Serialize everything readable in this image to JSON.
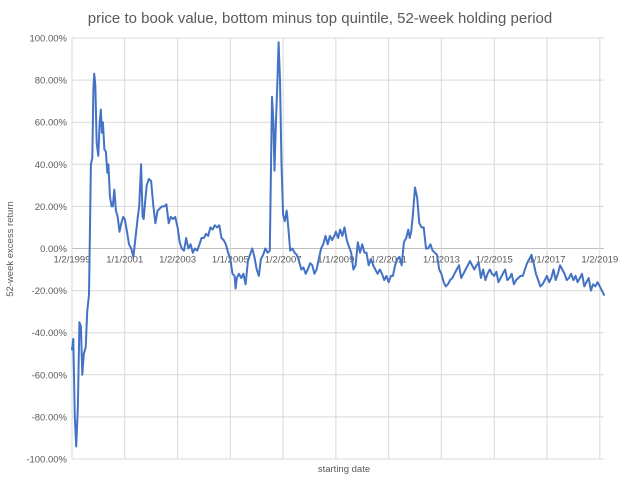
{
  "chart_data": {
    "type": "line",
    "title": "price to book value, bottom minus top quintile, 52-week holding period",
    "xlabel": "starting date",
    "ylabel": "52-week excess return",
    "ylim": [
      -100,
      100
    ],
    "yticks": [
      "100.00%",
      "80.00%",
      "60.00%",
      "40.00%",
      "20.00%",
      "0.00%",
      "-20.00%",
      "-40.00%",
      "-60.00%",
      "-80.00%",
      "-100.00%"
    ],
    "ytick_values": [
      100,
      80,
      60,
      40,
      20,
      0,
      -20,
      -40,
      -60,
      -80,
      -100
    ],
    "xrange": [
      "1999-01-02",
      "2019-03-01"
    ],
    "xticks": [
      {
        "label": "1/2/1999",
        "date": "1999-01-02"
      },
      {
        "label": "1/1/2001",
        "date": "2001-01-01"
      },
      {
        "label": "1/2/2003",
        "date": "2003-01-02"
      },
      {
        "label": "1/1/2005",
        "date": "2005-01-01"
      },
      {
        "label": "1/2/2007",
        "date": "2007-01-02"
      },
      {
        "label": "1/1/2009",
        "date": "2009-01-01"
      },
      {
        "label": "1/2/2011",
        "date": "2011-01-02"
      },
      {
        "label": "1/1/2013",
        "date": "2013-01-01"
      },
      {
        "label": "1/2/2015",
        "date": "2015-01-02"
      },
      {
        "label": "1/1/2017",
        "date": "2017-01-01"
      },
      {
        "label": "1/2/2019",
        "date": "2019-01-02"
      }
    ],
    "grid": true,
    "legend": "none",
    "series": [
      {
        "color": "#4472c4",
        "points": [
          [
            "1999-01-02",
            -48
          ],
          [
            "1999-01-20",
            -43
          ],
          [
            "1999-02-10",
            -80
          ],
          [
            "1999-03-01",
            -94
          ],
          [
            "1999-03-25",
            -75
          ],
          [
            "1999-04-15",
            -35
          ],
          [
            "1999-05-05",
            -37
          ],
          [
            "1999-05-25",
            -60
          ],
          [
            "1999-06-15",
            -50
          ],
          [
            "1999-07-10",
            -47
          ],
          [
            "1999-08-01",
            -30
          ],
          [
            "1999-08-25",
            -22
          ],
          [
            "1999-09-20",
            40
          ],
          [
            "1999-10-10",
            43
          ],
          [
            "1999-10-25",
            76
          ],
          [
            "1999-11-05",
            83
          ],
          [
            "1999-11-20",
            78
          ],
          [
            "1999-12-10",
            50
          ],
          [
            "2000-01-01",
            44
          ],
          [
            "2000-01-20",
            60
          ],
          [
            "2000-02-05",
            66
          ],
          [
            "2000-02-20",
            55
          ],
          [
            "2000-03-05",
            60
          ],
          [
            "2000-03-25",
            47
          ],
          [
            "2000-04-15",
            46
          ],
          [
            "2000-05-05",
            36
          ],
          [
            "2000-05-20",
            40
          ],
          [
            "2000-06-10",
            25
          ],
          [
            "2000-07-01",
            20
          ],
          [
            "2000-07-20",
            20
          ],
          [
            "2000-08-10",
            28
          ],
          [
            "2000-09-01",
            18
          ],
          [
            "2000-09-25",
            15
          ],
          [
            "2000-10-20",
            8
          ],
          [
            "2000-11-15",
            12
          ],
          [
            "2000-12-10",
            15
          ],
          [
            "2001-01-01",
            14
          ],
          [
            "2001-02-01",
            8
          ],
          [
            "2001-03-01",
            2
          ],
          [
            "2001-04-01",
            0
          ],
          [
            "2001-05-01",
            -4
          ],
          [
            "2001-06-01",
            6
          ],
          [
            "2001-07-01",
            15
          ],
          [
            "2001-07-20",
            20
          ],
          [
            "2001-08-15",
            40
          ],
          [
            "2001-09-05",
            15
          ],
          [
            "2001-09-20",
            14
          ],
          [
            "2001-10-10",
            22
          ],
          [
            "2001-11-01",
            30
          ],
          [
            "2001-12-01",
            33
          ],
          [
            "2002-01-01",
            32
          ],
          [
            "2002-02-01",
            20
          ],
          [
            "2002-03-01",
            12
          ],
          [
            "2002-04-01",
            18
          ],
          [
            "2002-05-01",
            19
          ],
          [
            "2002-06-01",
            20
          ],
          [
            "2002-07-01",
            20
          ],
          [
            "2002-08-01",
            21
          ],
          [
            "2002-09-01",
            12
          ],
          [
            "2002-10-01",
            15
          ],
          [
            "2002-11-01",
            14
          ],
          [
            "2002-12-01",
            15
          ],
          [
            "2003-01-02",
            10
          ],
          [
            "2003-02-01",
            3
          ],
          [
            "2003-03-01",
            0
          ],
          [
            "2003-04-01",
            -1
          ],
          [
            "2003-05-01",
            5
          ],
          [
            "2003-06-01",
            0
          ],
          [
            "2003-07-01",
            2
          ],
          [
            "2003-08-01",
            -2
          ],
          [
            "2003-09-01",
            0
          ],
          [
            "2003-10-01",
            -1
          ],
          [
            "2003-11-01",
            2
          ],
          [
            "2003-12-01",
            5
          ],
          [
            "2004-01-01",
            5
          ],
          [
            "2004-02-01",
            7
          ],
          [
            "2004-03-01",
            6
          ],
          [
            "2004-04-01",
            10
          ],
          [
            "2004-05-01",
            9
          ],
          [
            "2004-06-01",
            11
          ],
          [
            "2004-07-01",
            10
          ],
          [
            "2004-08-01",
            11
          ],
          [
            "2004-09-01",
            5
          ],
          [
            "2004-10-01",
            4
          ],
          [
            "2004-11-01",
            2
          ],
          [
            "2004-12-01",
            -2
          ],
          [
            "2005-01-01",
            -5
          ],
          [
            "2005-02-01",
            -12
          ],
          [
            "2005-03-01",
            -13
          ],
          [
            "2005-03-15",
            -19
          ],
          [
            "2005-04-01",
            -14
          ],
          [
            "2005-05-01",
            -12
          ],
          [
            "2005-06-01",
            -14
          ],
          [
            "2005-07-01",
            -12
          ],
          [
            "2005-08-01",
            -17
          ],
          [
            "2005-09-01",
            -6
          ],
          [
            "2005-10-01",
            -3
          ],
          [
            "2005-11-01",
            0
          ],
          [
            "2005-12-01",
            -4
          ],
          [
            "2006-01-01",
            -10
          ],
          [
            "2006-02-01",
            -13
          ],
          [
            "2006-03-01",
            -5
          ],
          [
            "2006-04-01",
            -3
          ],
          [
            "2006-05-01",
            0
          ],
          [
            "2006-06-01",
            -2
          ],
          [
            "2006-07-01",
            -1
          ],
          [
            "2006-08-01",
            72
          ],
          [
            "2006-08-20",
            60
          ],
          [
            "2006-09-05",
            37
          ],
          [
            "2006-09-20",
            55
          ],
          [
            "2006-10-10",
            75
          ],
          [
            "2006-11-01",
            98
          ],
          [
            "2006-11-20",
            80
          ],
          [
            "2006-12-10",
            40
          ],
          [
            "2007-01-02",
            16
          ],
          [
            "2007-01-25",
            13
          ],
          [
            "2007-02-20",
            18
          ],
          [
            "2007-03-15",
            10
          ],
          [
            "2007-04-10",
            -1
          ],
          [
            "2007-05-10",
            0
          ],
          [
            "2007-06-10",
            -2
          ],
          [
            "2007-07-10",
            -3
          ],
          [
            "2007-08-10",
            -6
          ],
          [
            "2007-09-10",
            -10
          ],
          [
            "2007-10-10",
            -9
          ],
          [
            "2007-11-10",
            -12
          ],
          [
            "2007-12-10",
            -10
          ],
          [
            "2008-01-10",
            -7
          ],
          [
            "2008-02-10",
            -8
          ],
          [
            "2008-03-10",
            -12
          ],
          [
            "2008-04-10",
            -10
          ],
          [
            "2008-05-10",
            -5
          ],
          [
            "2008-06-10",
            0
          ],
          [
            "2008-07-10",
            2
          ],
          [
            "2008-08-10",
            6
          ],
          [
            "2008-09-10",
            2
          ],
          [
            "2008-10-10",
            6
          ],
          [
            "2008-11-10",
            4
          ],
          [
            "2008-12-10",
            6
          ],
          [
            "2009-01-01",
            8
          ],
          [
            "2009-02-01",
            5
          ],
          [
            "2009-03-01",
            9
          ],
          [
            "2009-04-01",
            6
          ],
          [
            "2009-05-01",
            10
          ],
          [
            "2009-06-01",
            4
          ],
          [
            "2009-07-01",
            1
          ],
          [
            "2009-08-01",
            -2
          ],
          [
            "2009-09-01",
            -10
          ],
          [
            "2009-10-01",
            -8
          ],
          [
            "2009-11-01",
            3
          ],
          [
            "2009-12-01",
            -2
          ],
          [
            "2010-01-01",
            2
          ],
          [
            "2010-02-01",
            -2
          ],
          [
            "2010-03-01",
            -2
          ],
          [
            "2010-04-01",
            -8
          ],
          [
            "2010-05-01",
            -5
          ],
          [
            "2010-06-01",
            -8
          ],
          [
            "2010-07-01",
            -10
          ],
          [
            "2010-08-01",
            -12
          ],
          [
            "2010-09-01",
            -10
          ],
          [
            "2010-10-01",
            -12
          ],
          [
            "2010-11-01",
            -15
          ],
          [
            "2010-12-01",
            -13
          ],
          [
            "2011-01-02",
            -16
          ],
          [
            "2011-02-01",
            -13
          ],
          [
            "2011-03-01",
            -13
          ],
          [
            "2011-04-01",
            -8
          ],
          [
            "2011-05-01",
            -5
          ],
          [
            "2011-06-01",
            -4
          ],
          [
            "2011-07-01",
            -8
          ],
          [
            "2011-08-01",
            3
          ],
          [
            "2011-09-01",
            5
          ],
          [
            "2011-10-01",
            9
          ],
          [
            "2011-10-20",
            5
          ],
          [
            "2011-11-10",
            8
          ],
          [
            "2011-12-01",
            15
          ],
          [
            "2012-01-01",
            29
          ],
          [
            "2012-02-01",
            24
          ],
          [
            "2012-03-01",
            12
          ],
          [
            "2012-04-01",
            10
          ],
          [
            "2012-05-01",
            10
          ],
          [
            "2012-06-01",
            0
          ],
          [
            "2012-07-01",
            0
          ],
          [
            "2012-08-01",
            2
          ],
          [
            "2012-09-01",
            -1
          ],
          [
            "2012-10-01",
            -2
          ],
          [
            "2012-11-01",
            -3
          ],
          [
            "2012-12-01",
            -10
          ],
          [
            "2013-01-01",
            -12
          ],
          [
            "2013-02-01",
            -16
          ],
          [
            "2013-03-01",
            -18
          ],
          [
            "2013-04-01",
            -17
          ],
          [
            "2013-05-01",
            -15
          ],
          [
            "2013-06-01",
            -14
          ],
          [
            "2013-07-01",
            -12
          ],
          [
            "2013-08-01",
            -10
          ],
          [
            "2013-09-01",
            -8
          ],
          [
            "2013-10-01",
            -14
          ],
          [
            "2013-11-01",
            -12
          ],
          [
            "2013-12-01",
            -10
          ],
          [
            "2014-01-01",
            -8
          ],
          [
            "2014-02-01",
            -6
          ],
          [
            "2014-03-01",
            -8
          ],
          [
            "2014-04-01",
            -10
          ],
          [
            "2014-05-01",
            -8
          ],
          [
            "2014-06-01",
            -7
          ],
          [
            "2014-07-01",
            -14
          ],
          [
            "2014-08-01",
            -10
          ],
          [
            "2014-09-01",
            -15
          ],
          [
            "2014-10-01",
            -12
          ],
          [
            "2014-11-01",
            -10
          ],
          [
            "2014-12-01",
            -12
          ],
          [
            "2015-01-02",
            -13
          ],
          [
            "2015-02-01",
            -11
          ],
          [
            "2015-03-01",
            -16
          ],
          [
            "2015-04-01",
            -14
          ],
          [
            "2015-05-01",
            -12
          ],
          [
            "2015-06-01",
            -10
          ],
          [
            "2015-07-01",
            -15
          ],
          [
            "2015-08-01",
            -14
          ],
          [
            "2015-09-01",
            -12
          ],
          [
            "2015-10-01",
            -17
          ],
          [
            "2015-11-01",
            -15
          ],
          [
            "2015-12-01",
            -14
          ],
          [
            "2016-01-01",
            -13
          ],
          [
            "2016-02-01",
            -13
          ],
          [
            "2016-03-01",
            -10
          ],
          [
            "2016-04-01",
            -7
          ],
          [
            "2016-05-01",
            -5
          ],
          [
            "2016-06-01",
            -3
          ],
          [
            "2016-07-01",
            -7
          ],
          [
            "2016-08-01",
            -12
          ],
          [
            "2016-09-01",
            -15
          ],
          [
            "2016-10-01",
            -18
          ],
          [
            "2016-11-01",
            -17
          ],
          [
            "2016-12-01",
            -15
          ],
          [
            "2017-01-01",
            -13
          ],
          [
            "2017-02-01",
            -16
          ],
          [
            "2017-03-01",
            -14
          ],
          [
            "2017-04-01",
            -10
          ],
          [
            "2017-05-01",
            -15
          ],
          [
            "2017-06-01",
            -12
          ],
          [
            "2017-07-01",
            -8
          ],
          [
            "2017-08-01",
            -10
          ],
          [
            "2017-09-01",
            -12
          ],
          [
            "2017-10-01",
            -15
          ],
          [
            "2017-11-01",
            -14
          ],
          [
            "2017-12-01",
            -12
          ],
          [
            "2018-01-01",
            -15
          ],
          [
            "2018-02-01",
            -13
          ],
          [
            "2018-03-01",
            -16
          ],
          [
            "2018-04-01",
            -14
          ],
          [
            "2018-05-01",
            -12
          ],
          [
            "2018-06-01",
            -18
          ],
          [
            "2018-07-01",
            -16
          ],
          [
            "2018-08-01",
            -14
          ],
          [
            "2018-09-01",
            -20
          ],
          [
            "2018-10-01",
            -17
          ],
          [
            "2018-11-01",
            -18
          ],
          [
            "2018-12-01",
            -16
          ],
          [
            "2019-01-02",
            -18
          ],
          [
            "2019-03-01",
            -22
          ]
        ]
      }
    ]
  }
}
